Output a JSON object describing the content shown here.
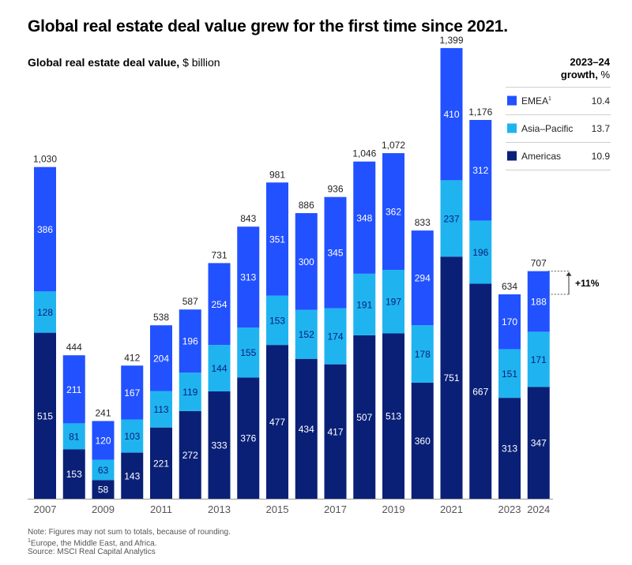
{
  "title": "Global real estate deal value grew for the first time since 2021.",
  "subtitle_bold": "Global real estate deal value,",
  "subtitle_unit": "$ billion",
  "growth_header": {
    "line1": "2023–24",
    "line2_bold": "growth,",
    "line2_unit": "%"
  },
  "growth_annotation": "+11%",
  "footnotes": {
    "note": "Note: Figures may not sum to totals, because of rounding.",
    "footnote_mark": "1",
    "footnote": "Europe, the Middle East, and Africa.",
    "source": "Source: MSCI Real Capital Analytics"
  },
  "chart_data": {
    "type": "bar",
    "stacked": true,
    "categories": [
      "2007",
      "2008",
      "2009",
      "2010",
      "2011",
      "2012",
      "2013",
      "2014",
      "2015",
      "2016",
      "2017",
      "2018",
      "2019",
      "2020",
      "2021",
      "2022",
      "2023",
      "2024"
    ],
    "tick_labels": [
      "2007",
      "",
      "2009",
      "",
      "2011",
      "",
      "2013",
      "",
      "2015",
      "",
      "2017",
      "",
      "2019",
      "",
      "2021",
      "",
      "2023",
      "2024"
    ],
    "series": [
      {
        "name": "Americas",
        "color": "#0a2077",
        "values": [
          515,
          153,
          58,
          143,
          221,
          272,
          333,
          376,
          477,
          434,
          417,
          507,
          513,
          360,
          751,
          667,
          313,
          347
        ],
        "growth": "10.9"
      },
      {
        "name": "Asia–Pacific",
        "color": "#1fb4f0",
        "values": [
          128,
          81,
          63,
          103,
          113,
          119,
          144,
          155,
          153,
          152,
          174,
          191,
          197,
          178,
          237,
          196,
          151,
          171
        ],
        "growth": "13.7"
      },
      {
        "name": "EMEA",
        "name_sup": "1",
        "color": "#2251ff",
        "values": [
          386,
          211,
          120,
          167,
          204,
          196,
          254,
          313,
          351,
          300,
          345,
          348,
          362,
          294,
          410,
          312,
          170,
          188
        ],
        "growth": "10.4"
      }
    ],
    "totals": [
      "1,030",
      "444",
      "241",
      "412",
      "538",
      "587",
      "731",
      "843",
      "981",
      "886",
      "936",
      "1,046",
      "1,072",
      "833",
      "1,399",
      "1,176",
      "634",
      "707"
    ],
    "ylim": [
      0,
      1450
    ],
    "legend_position": "top-right",
    "grid": false
  }
}
